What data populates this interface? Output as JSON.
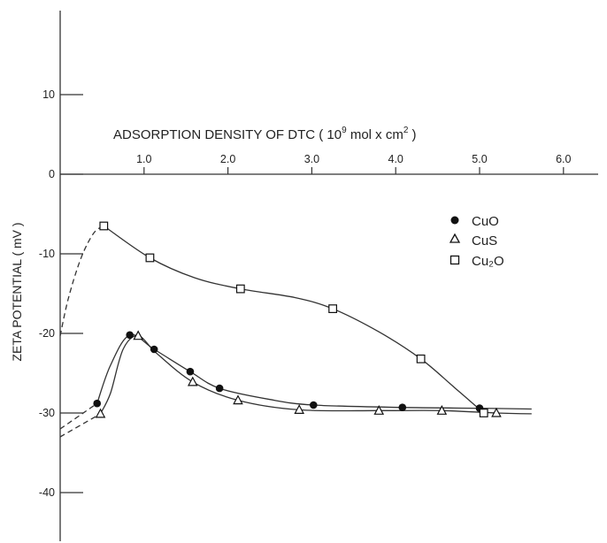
{
  "chart_data": {
    "type": "scatter",
    "title": "ADSORPTION DENSITY OF DTC ( 10^9 mol x cm^2 )",
    "title_parts": {
      "before": "ADSORPTION DENSITY OF DTC ( 10",
      "exp1": "9",
      "middle": " mol x cm",
      "exp2": "2",
      "after": " )"
    },
    "ylabel": "ZETA POTENTIAL ( mV )",
    "xlim": [
      0,
      6.6
    ],
    "ylim": [
      -45,
      20
    ],
    "x_ticks": [
      "1.0",
      "2.0",
      "3.0",
      "4.0",
      "5.0",
      "6.0"
    ],
    "y_ticks": [
      "10",
      "0",
      "-10",
      "-20",
      "-30",
      "-40"
    ],
    "legend_position": "right",
    "series": [
      {
        "name": "CuO",
        "marker": "filled-circle",
        "points": [
          [
            0.44,
            -28.8
          ],
          [
            0.83,
            -20.2
          ],
          [
            1.12,
            -22.0
          ],
          [
            1.55,
            -24.8
          ],
          [
            1.9,
            -26.9
          ],
          [
            3.02,
            -29.0
          ],
          [
            4.08,
            -29.3
          ],
          [
            5.0,
            -29.4
          ]
        ],
        "solid_path": [
          [
            0.44,
            -28.8
          ],
          [
            0.6,
            -24.0
          ],
          [
            0.83,
            -20.2
          ],
          [
            1.12,
            -22.0
          ],
          [
            1.55,
            -24.8
          ],
          [
            1.9,
            -26.9
          ],
          [
            2.5,
            -28.3
          ],
          [
            3.02,
            -29.0
          ],
          [
            4.08,
            -29.3
          ],
          [
            5.0,
            -29.4
          ],
          [
            5.62,
            -29.5
          ]
        ],
        "dashed_path": [
          [
            0.0,
            -32.0
          ],
          [
            0.44,
            -28.8
          ]
        ]
      },
      {
        "name": "CuS",
        "marker": "open-triangle",
        "points": [
          [
            0.48,
            -30.1
          ],
          [
            0.93,
            -20.3
          ],
          [
            1.58,
            -26.1
          ],
          [
            2.12,
            -28.4
          ],
          [
            2.85,
            -29.6
          ],
          [
            3.8,
            -29.7
          ],
          [
            4.55,
            -29.7
          ],
          [
            5.2,
            -30.0
          ]
        ],
        "solid_path": [
          [
            0.48,
            -30.1
          ],
          [
            0.6,
            -27.5
          ],
          [
            0.75,
            -22.0
          ],
          [
            0.93,
            -20.3
          ],
          [
            1.15,
            -22.5
          ],
          [
            1.58,
            -26.1
          ],
          [
            2.12,
            -28.4
          ],
          [
            2.85,
            -29.6
          ],
          [
            3.8,
            -29.7
          ],
          [
            4.55,
            -29.7
          ],
          [
            5.2,
            -30.0
          ],
          [
            5.62,
            -30.1
          ]
        ],
        "dashed_path": [
          [
            0.0,
            -33.0
          ],
          [
            0.48,
            -30.1
          ]
        ]
      },
      {
        "name": "Cu₂O",
        "marker": "open-square",
        "points": [
          [
            0.52,
            -6.5
          ],
          [
            1.07,
            -10.5
          ],
          [
            2.15,
            -14.4
          ],
          [
            3.25,
            -16.9
          ],
          [
            4.3,
            -23.2
          ],
          [
            5.05,
            -30.0
          ]
        ],
        "solid_path": [
          [
            0.52,
            -6.5
          ],
          [
            1.07,
            -10.5
          ],
          [
            1.6,
            -13.0
          ],
          [
            2.15,
            -14.4
          ],
          [
            2.8,
            -15.5
          ],
          [
            3.25,
            -16.9
          ],
          [
            3.8,
            -19.8
          ],
          [
            4.3,
            -23.2
          ],
          [
            4.7,
            -26.8
          ],
          [
            5.05,
            -30.0
          ]
        ],
        "dashed_path": [
          [
            0.0,
            -20.3
          ],
          [
            0.1,
            -15.5
          ],
          [
            0.25,
            -10.5
          ],
          [
            0.4,
            -7.4
          ],
          [
            0.52,
            -6.5
          ]
        ]
      }
    ]
  }
}
